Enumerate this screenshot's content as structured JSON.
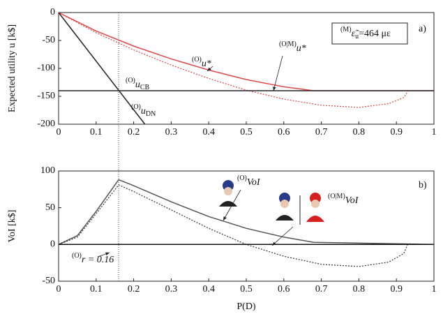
{
  "chart_data": [
    {
      "type": "line",
      "ylabel": "Expected utility u [k$]",
      "panel_label": "a)",
      "xlim": [
        0,
        1
      ],
      "ylim": [
        -200,
        0
      ],
      "xticks": [
        0,
        0.1,
        0.2,
        0.3,
        0.4,
        0.5,
        0.6,
        0.7,
        0.8,
        0.9,
        1
      ],
      "yticks": [
        0,
        -50,
        -100,
        -150,
        -200
      ],
      "series": [
        {
          "color": "#e04848",
          "style": "solid",
          "x": [
            0,
            0.1,
            0.2,
            0.3,
            0.4,
            0.5,
            0.6,
            0.68,
            1
          ],
          "values": [
            0,
            -33,
            -60,
            -83,
            -103,
            -120,
            -133,
            -140,
            -140
          ]
        },
        {
          "color": "#e04848",
          "style": "dotted",
          "x": [
            0,
            0.1,
            0.2,
            0.3,
            0.4,
            0.5,
            0.6,
            0.7,
            0.8,
            0.88,
            0.92,
            0.93
          ],
          "values": [
            0,
            -36,
            -67,
            -94,
            -118,
            -139,
            -155,
            -166,
            -170,
            -163,
            -152,
            -141
          ]
        },
        {
          "color": "#222222",
          "style": "solid",
          "x": [
            0,
            1
          ],
          "values": [
            -140,
            -140
          ]
        },
        {
          "color": "#222222",
          "style": "solid",
          "x": [
            0,
            0.23
          ],
          "values": [
            0,
            -200
          ]
        }
      ],
      "annotations": [
        {
          "pre": "(O)",
          "text": "u*"
        },
        {
          "pre": "(O|M)",
          "text": "u*"
        },
        {
          "pre": "(O)",
          "text": "u",
          "sub": "CB"
        },
        {
          "pre": "(O)",
          "text": "u",
          "sub": "DN"
        },
        {
          "pre": "(M)",
          "text": "ε̃",
          "sub": "u",
          "post": "=464 με"
        }
      ]
    },
    {
      "type": "line",
      "ylabel": "VoI [k$]",
      "xlabel": "P(D)",
      "panel_label": "b)",
      "xlim": [
        0,
        1
      ],
      "ylim": [
        -50,
        100
      ],
      "xticks": [
        0,
        0.1,
        0.2,
        0.3,
        0.4,
        0.5,
        0.6,
        0.7,
        0.8,
        0.9,
        1
      ],
      "yticks": [
        -50,
        0,
        50,
        100
      ],
      "vline": 0.16,
      "series": [
        {
          "color": "#555555",
          "style": "solid",
          "x": [
            0,
            0.05,
            0.1,
            0.16,
            0.2,
            0.3,
            0.4,
            0.5,
            0.6,
            0.68,
            1
          ],
          "values": [
            0,
            12,
            45,
            88,
            80,
            58,
            38,
            22,
            10,
            3,
            0
          ]
        },
        {
          "color": "#333333",
          "style": "dotted",
          "x": [
            0,
            0.05,
            0.1,
            0.16,
            0.2,
            0.3,
            0.4,
            0.5,
            0.6,
            0.7,
            0.8,
            0.88,
            0.92,
            0.93
          ],
          "values": [
            0,
            10,
            42,
            81,
            72,
            47,
            22,
            0,
            -16,
            -27,
            -30,
            -24,
            -12,
            0
          ]
        },
        {
          "color": "#111111",
          "style": "solid",
          "x": [
            0,
            1
          ],
          "values": [
            0,
            0
          ]
        }
      ],
      "annotations": [
        {
          "pre": "(O)",
          "text": "VoI"
        },
        {
          "pre": "(O|M)",
          "text": "VoI"
        },
        {
          "pre": "(O)",
          "text": "r = 0.16"
        }
      ]
    }
  ]
}
